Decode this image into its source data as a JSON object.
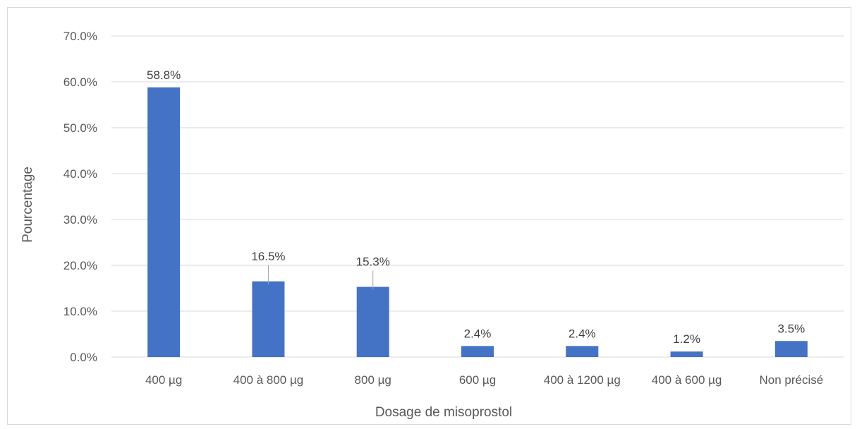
{
  "chart_data": {
    "type": "bar",
    "title": "",
    "xlabel": "Dosage de misoprostol",
    "ylabel": "Pourcentage",
    "categories": [
      "400 µg",
      "400 à 800 µg",
      "800 µg",
      "600 µg",
      "400 à 1200 µg",
      "400 à 600 µg",
      "Non précisé"
    ],
    "values": [
      58.8,
      16.5,
      15.3,
      2.4,
      2.4,
      1.2,
      3.5
    ],
    "data_labels": [
      "58.8%",
      "16.5%",
      "15.3%",
      "2.4%",
      "2.4%",
      "1.2%",
      "3.5%"
    ],
    "ylim": [
      0,
      70
    ],
    "yticks": [
      0,
      10,
      20,
      30,
      40,
      50,
      60,
      70
    ],
    "ytick_labels": [
      "0.0%",
      "10.0%",
      "20.0%",
      "30.0%",
      "40.0%",
      "50.0%",
      "60.0%",
      "70.0%"
    ],
    "grid": true,
    "legend": "none",
    "colors": {
      "bar": "#4472c4",
      "grid": "#d9d9d9",
      "text": "#595959",
      "leader": "#a6a6a6"
    }
  }
}
